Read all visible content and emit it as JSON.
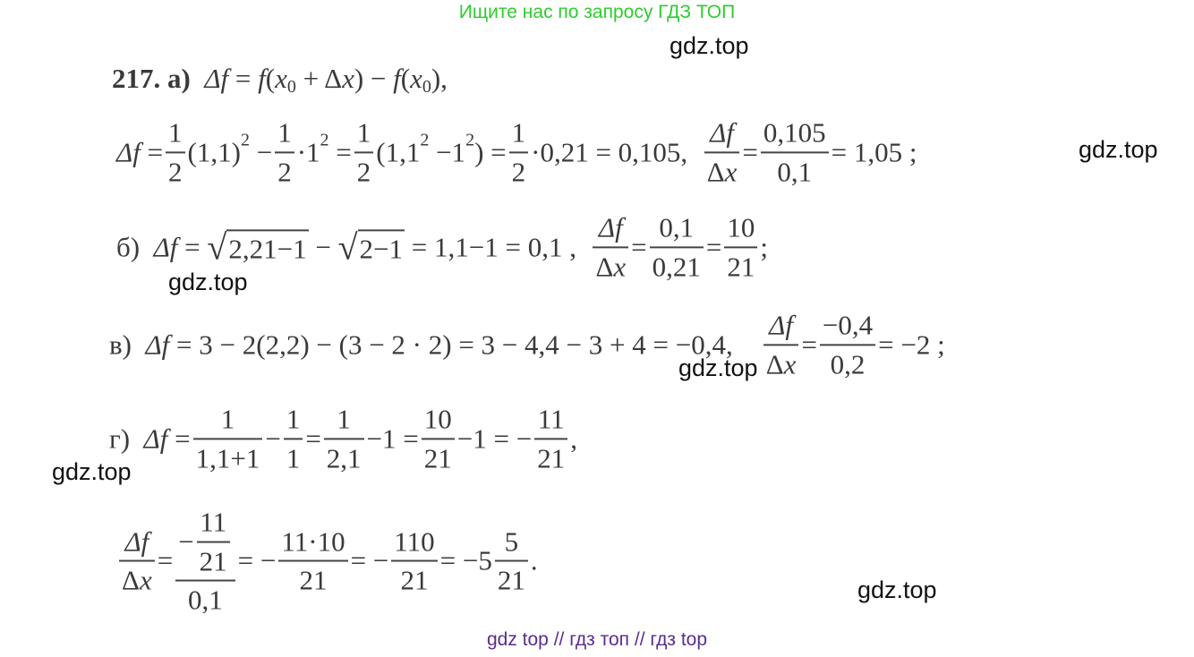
{
  "banner": "Ищите нас по запросу ГДЗ ТОП",
  "footer": "gdz top  //  гдз топ  //  гдз top",
  "watermarks": [
    "gdz.top",
    "gdz.top",
    "gdz.top",
    "gdz.top",
    "gdz.top",
    "gdz.top"
  ],
  "lines": [
    [
      {
        "b": "217. а)  "
      },
      {
        "i": "Δf"
      },
      {
        "t": " = "
      },
      {
        "i": "f"
      },
      {
        "t": "("
      },
      {
        "i": "x"
      },
      {
        "sub": "0"
      },
      {
        "t": " + Δ"
      },
      {
        "i": "x"
      },
      {
        "t": ") − "
      },
      {
        "i": "f"
      },
      {
        "t": "("
      },
      {
        "i": "x"
      },
      {
        "sub": "0"
      },
      {
        "t": "),"
      }
    ],
    [
      {
        "i": "Δf"
      },
      {
        "t": " ="
      },
      {
        "n": "1",
        "d": "2"
      },
      {
        "t": "(1,1)"
      },
      {
        "sup": "2"
      },
      {
        "t": " −"
      },
      {
        "n": "1",
        "d": "2"
      },
      {
        "t": "·1"
      },
      {
        "sup": "2"
      },
      {
        "t": " ="
      },
      {
        "n": "1",
        "d": "2"
      },
      {
        "t": "(1,1"
      },
      {
        "sup": "2"
      },
      {
        "t": " −1"
      },
      {
        "sup": "2"
      },
      {
        "t": ") ="
      },
      {
        "n": "1",
        "d": "2"
      },
      {
        "t": "·0,21 = 0,105,  "
      },
      {
        "n": [
          {
            "i": "Δf"
          }
        ],
        "d": [
          {
            "t": "Δ"
          },
          {
            "i": "x"
          }
        ]
      },
      {
        "t": "="
      },
      {
        "n": "0,105",
        "d": "0,1"
      },
      {
        "t": "= 1,05 ;"
      }
    ],
    [
      {
        "t": "б)  "
      },
      {
        "i": "Δf"
      },
      {
        "t": " = "
      },
      {
        "sqrt": "2,21−1"
      },
      {
        "t": " − "
      },
      {
        "sqrt": "2−1"
      },
      {
        "t": " = 1,1−1 = 0,1 ,  "
      },
      {
        "n": [
          {
            "i": "Δf"
          }
        ],
        "d": [
          {
            "t": "Δ"
          },
          {
            "i": "x"
          }
        ]
      },
      {
        "t": "="
      },
      {
        "n": "0,1",
        "d": "0,21"
      },
      {
        "t": "="
      },
      {
        "n": "10",
        "d": "21"
      },
      {
        "t": ";"
      }
    ],
    [
      {
        "t": "в)  "
      },
      {
        "i": "Δf"
      },
      {
        "t": " = 3 − 2(2,2) − (3 − 2 · 2) = 3 − 4,4 − 3 + 4 = −0,4,    "
      },
      {
        "n": [
          {
            "i": "Δf"
          }
        ],
        "d": [
          {
            "t": "Δ"
          },
          {
            "i": "x"
          }
        ]
      },
      {
        "t": "="
      },
      {
        "n": "−0,4",
        "d": "0,2"
      },
      {
        "t": "= −2 ;"
      }
    ],
    [
      {
        "t": "г)  "
      },
      {
        "i": "Δf"
      },
      {
        "t": " ="
      },
      {
        "n": "1",
        "d": "1,1+1"
      },
      {
        "t": "−"
      },
      {
        "n": "1",
        "d": "1"
      },
      {
        "t": "="
      },
      {
        "n": "1",
        "d": "2,1"
      },
      {
        "t": "−1 ="
      },
      {
        "n": "10",
        "d": "21"
      },
      {
        "t": "−1 = −"
      },
      {
        "n": "11",
        "d": "21"
      },
      {
        "t": ","
      }
    ],
    [
      {
        "n": [
          {
            "i": "Δf"
          }
        ],
        "d": [
          {
            "t": "Δ"
          },
          {
            "i": "x"
          }
        ]
      },
      {
        "t": "="
      },
      {
        "n": [
          {
            "t": "−"
          },
          {
            "n": "11",
            "d": "21"
          }
        ],
        "d": "0,1"
      },
      {
        "t": "= −"
      },
      {
        "n": "11·10",
        "d": "21"
      },
      {
        "t": "= −"
      },
      {
        "n": "110",
        "d": "21"
      },
      {
        "t": "= −5"
      },
      {
        "n": "5",
        "d": "21"
      },
      {
        "t": "."
      }
    ]
  ]
}
